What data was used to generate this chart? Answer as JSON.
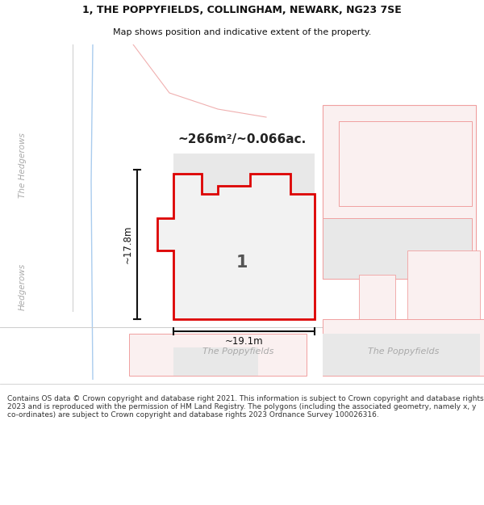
{
  "title_line1": "1, THE POPPYFIELDS, COLLINGHAM, NEWARK, NG23 7SE",
  "title_line2": "Map shows position and indicative extent of the property.",
  "area_text": "~266m²/~0.066ac.",
  "label_number": "1",
  "dim_width": "~19.1m",
  "dim_height": "~17.8m",
  "street_label_center": "The Poppyfields",
  "street_label_right": "The Poppyfields",
  "left_label": "The Hedgerows",
  "left_label2": "Hedgerows",
  "footer_text": "Contains OS data © Crown copyright and database right 2021. This information is subject to Crown copyright and database rights 2023 and is reproduced with the permission of HM Land Registry. The polygons (including the associated geometry, namely x, y co-ordinates) are subject to Crown copyright and database rights 2023 Ordnance Survey 100026316.",
  "bg_color": "#ffffff",
  "main_poly_edge": "#dd0000",
  "main_poly_fill": "#f2f2f2",
  "gray_fill": "#e8e8e8",
  "neighbor_edge": "#f0a0a0",
  "neighbor_fill": "#faf0f0",
  "road_color_blue": "#aaccee",
  "road_color_pink": "#f0b0b0",
  "road_color_gray": "#cccccc",
  "dim_color": "#111111",
  "text_gray": "#aaaaaa",
  "area_text_color": "#222222",
  "footer_color": "#333333"
}
